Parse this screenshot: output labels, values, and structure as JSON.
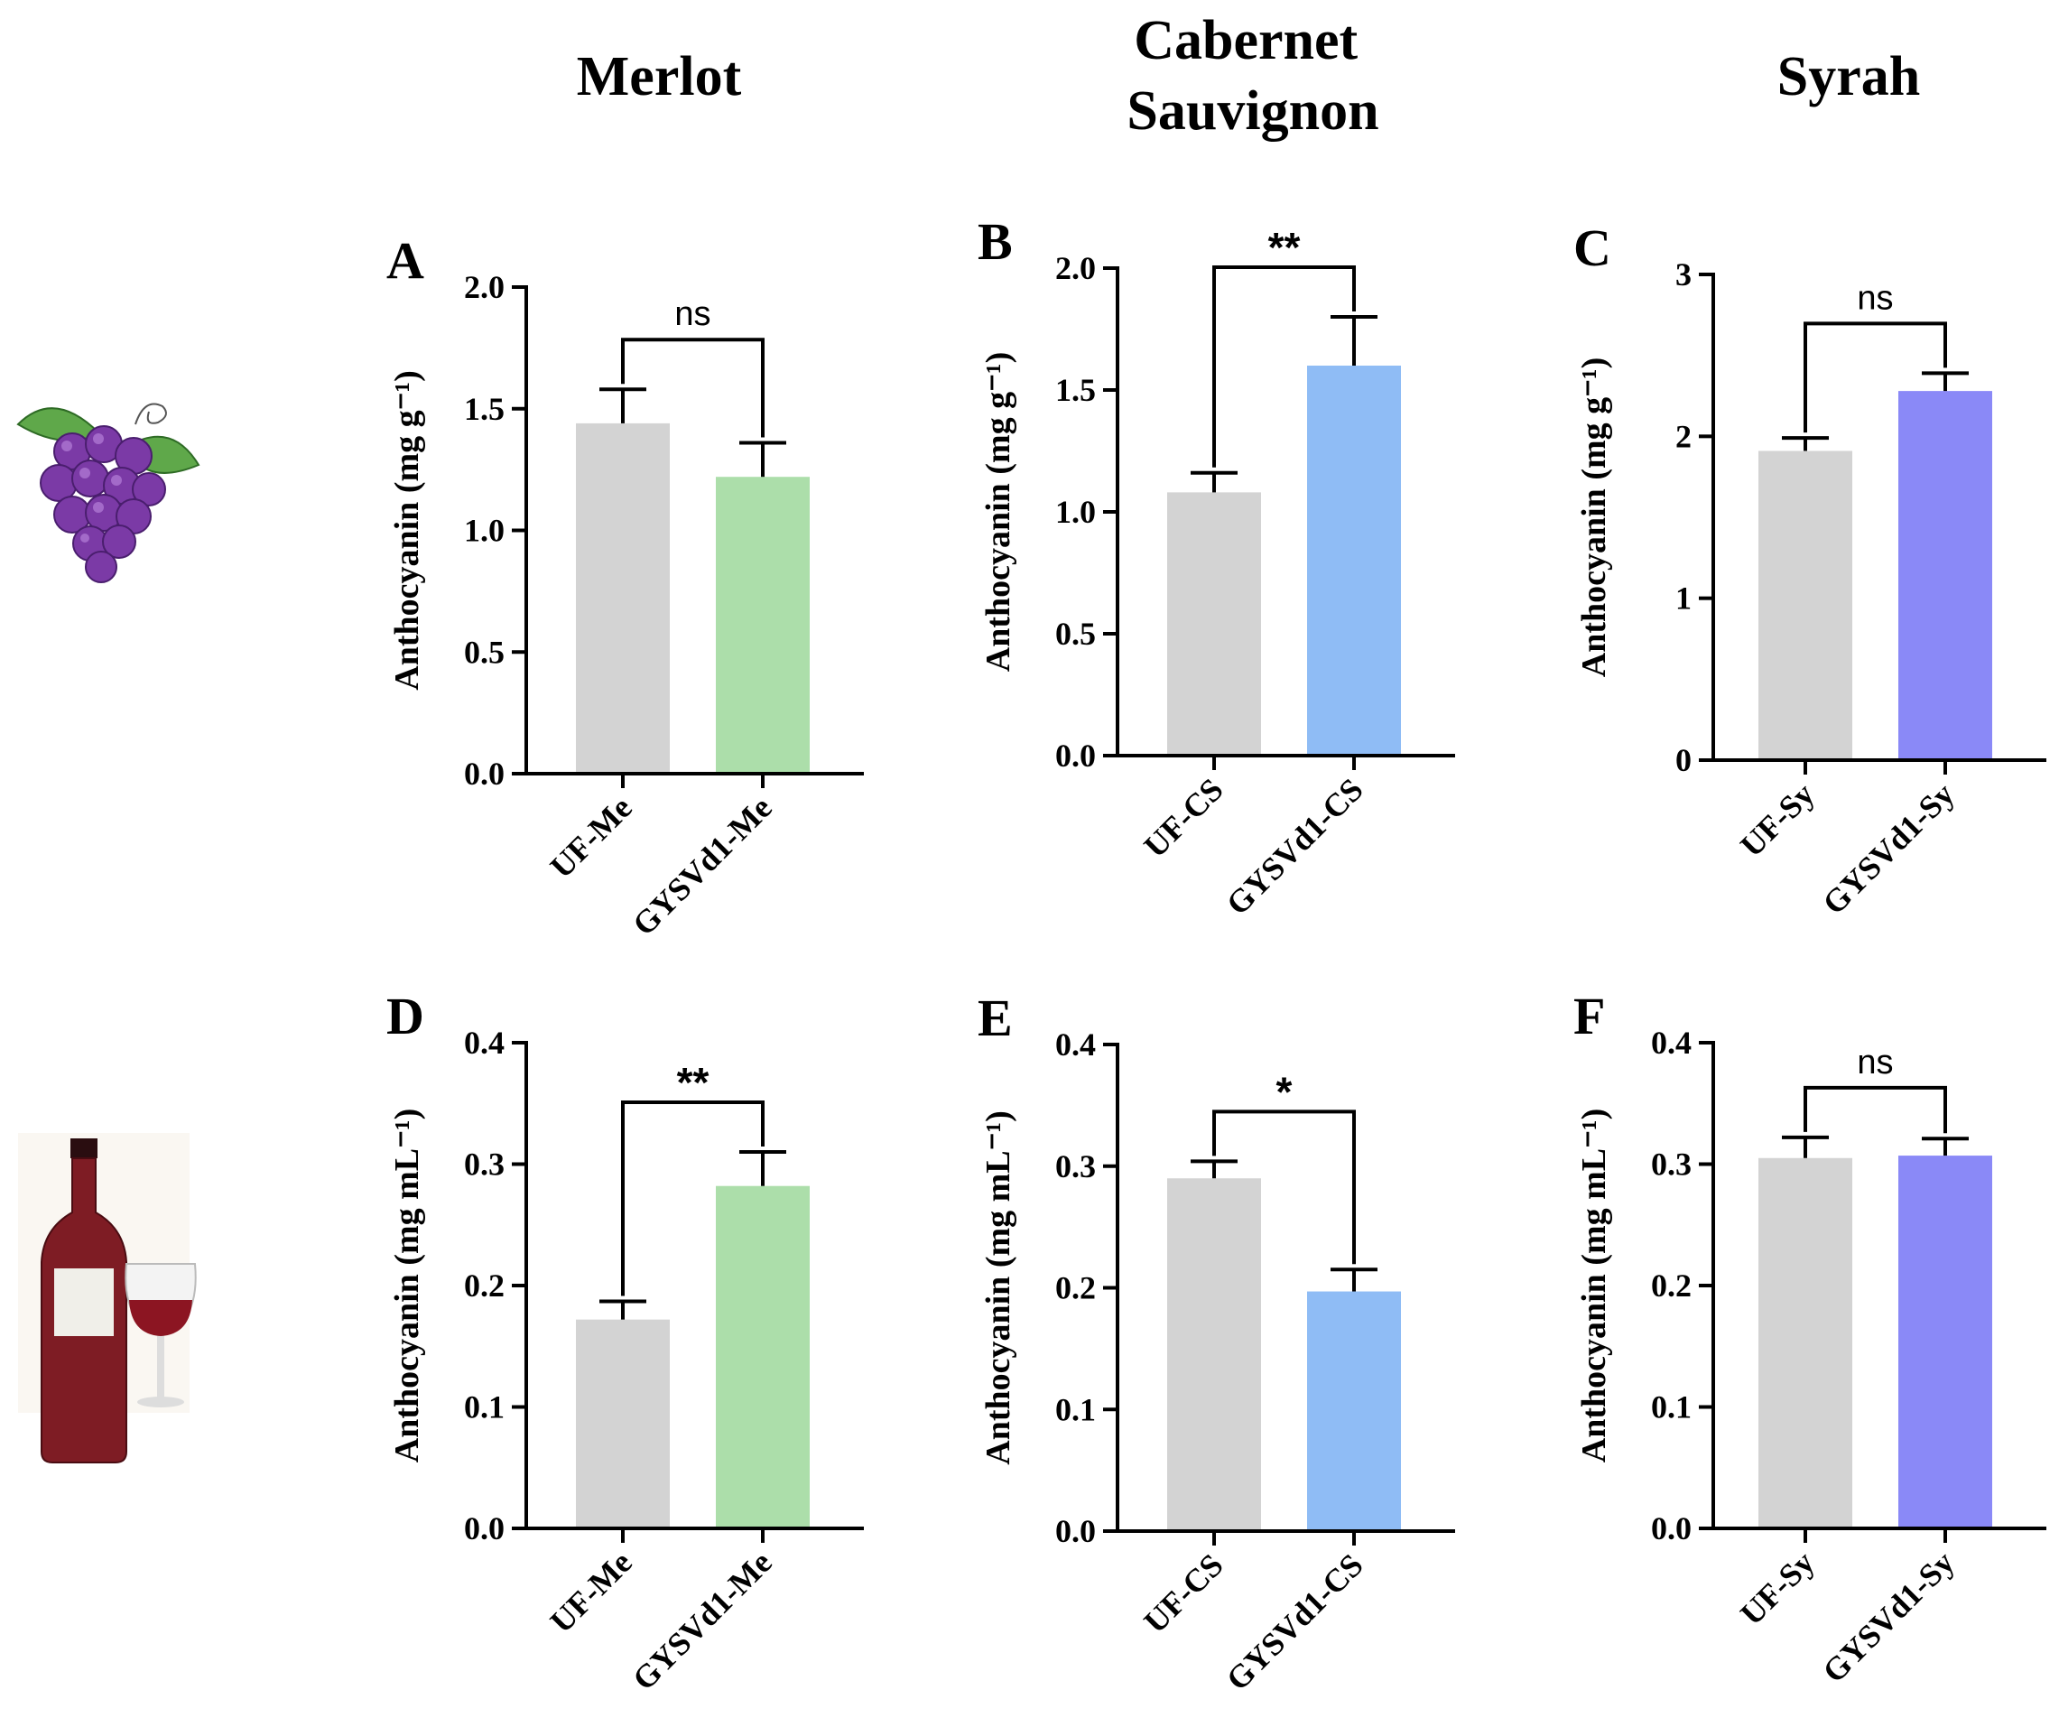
{
  "column_titles": [
    "Merlot",
    "Cabernet\nSauvignon",
    "Syrah"
  ],
  "icons": {
    "row1": "grape-bunch-icon",
    "row2": "wine-bottle-and-glass-icon"
  },
  "colors": {
    "control": "#d3d3d3",
    "merlot": "#acdeaa",
    "cabernet": "#8fbcf5",
    "syrah": "#8a89f7",
    "axis": "#000000"
  },
  "chart_data": [
    {
      "panel": "A",
      "type": "bar",
      "column": 0,
      "row": 0,
      "categories": [
        "UF-Me",
        "GYSVd1-Me"
      ],
      "values": [
        1.44,
        1.22
      ],
      "errors": [
        0.14,
        0.14
      ],
      "colors": [
        "control",
        "merlot"
      ],
      "ylabel": "Anthocyanin (mg g⁻¹)",
      "ylim": [
        0,
        2.0
      ],
      "yticks": [
        0.0,
        0.5,
        1.0,
        1.5,
        2.0
      ],
      "ytick_labels": [
        "0.0",
        "0.5",
        "1.0",
        "1.5",
        "2.0"
      ],
      "significance": "ns"
    },
    {
      "panel": "B",
      "type": "bar",
      "column": 1,
      "row": 0,
      "categories": [
        "UF-CS",
        "GYSVd1-CS"
      ],
      "values": [
        1.08,
        1.6
      ],
      "errors": [
        0.08,
        0.2
      ],
      "colors": [
        "control",
        "cabernet"
      ],
      "ylabel": "Anthocyanin (mg g⁻¹)",
      "ylim": [
        0,
        2.0
      ],
      "yticks": [
        0.0,
        0.5,
        1.0,
        1.5,
        2.0
      ],
      "ytick_labels": [
        "0.0",
        "0.5",
        "1.0",
        "1.5",
        "2.0"
      ],
      "significance": "**"
    },
    {
      "panel": "C",
      "type": "bar",
      "column": 2,
      "row": 0,
      "categories": [
        "UF-Sy",
        "GYSVd1-Sy"
      ],
      "values": [
        1.91,
        2.28
      ],
      "errors": [
        0.08,
        0.11
      ],
      "colors": [
        "control",
        "syrah"
      ],
      "ylabel": "Anthocyanin (mg g⁻¹)",
      "ylim": [
        0,
        3
      ],
      "yticks": [
        0,
        1,
        2,
        3
      ],
      "ytick_labels": [
        "0",
        "1",
        "2",
        "3"
      ],
      "significance": "ns"
    },
    {
      "panel": "D",
      "type": "bar",
      "column": 0,
      "row": 1,
      "categories": [
        "UF-Me",
        "GYSVd1-Me"
      ],
      "values": [
        0.172,
        0.282
      ],
      "errors": [
        0.015,
        0.028
      ],
      "colors": [
        "control",
        "merlot"
      ],
      "ylabel": "Anthocyanin (mg mL⁻¹)",
      "ylim": [
        0,
        0.4
      ],
      "yticks": [
        0.0,
        0.1,
        0.2,
        0.3,
        0.4
      ],
      "ytick_labels": [
        "0.0",
        "0.1",
        "0.2",
        "0.3",
        "0.4"
      ],
      "significance": "**"
    },
    {
      "panel": "E",
      "type": "bar",
      "column": 1,
      "row": 1,
      "categories": [
        "UF-CS",
        "GYSVd1-CS"
      ],
      "values": [
        0.29,
        0.197
      ],
      "errors": [
        0.014,
        0.018
      ],
      "colors": [
        "control",
        "cabernet"
      ],
      "ylabel": "Anthocyanin (mg mL⁻¹)",
      "ylim": [
        0,
        0.4
      ],
      "yticks": [
        0.0,
        0.1,
        0.2,
        0.3,
        0.4
      ],
      "ytick_labels": [
        "0.0",
        "0.1",
        "0.2",
        "0.3",
        "0.4"
      ],
      "significance": "*"
    },
    {
      "panel": "F",
      "type": "bar",
      "column": 2,
      "row": 1,
      "categories": [
        "UF-Sy",
        "GYSVd1-Sy"
      ],
      "values": [
        0.305,
        0.307
      ],
      "errors": [
        0.017,
        0.014
      ],
      "colors": [
        "control",
        "syrah"
      ],
      "ylabel": "Anthocyanin (mg mL⁻¹)",
      "ylim": [
        0,
        0.4
      ],
      "yticks": [
        0.0,
        0.1,
        0.2,
        0.3,
        0.4
      ],
      "ytick_labels": [
        "0.0",
        "0.1",
        "0.2",
        "0.3",
        "0.4"
      ],
      "significance": "ns"
    }
  ]
}
